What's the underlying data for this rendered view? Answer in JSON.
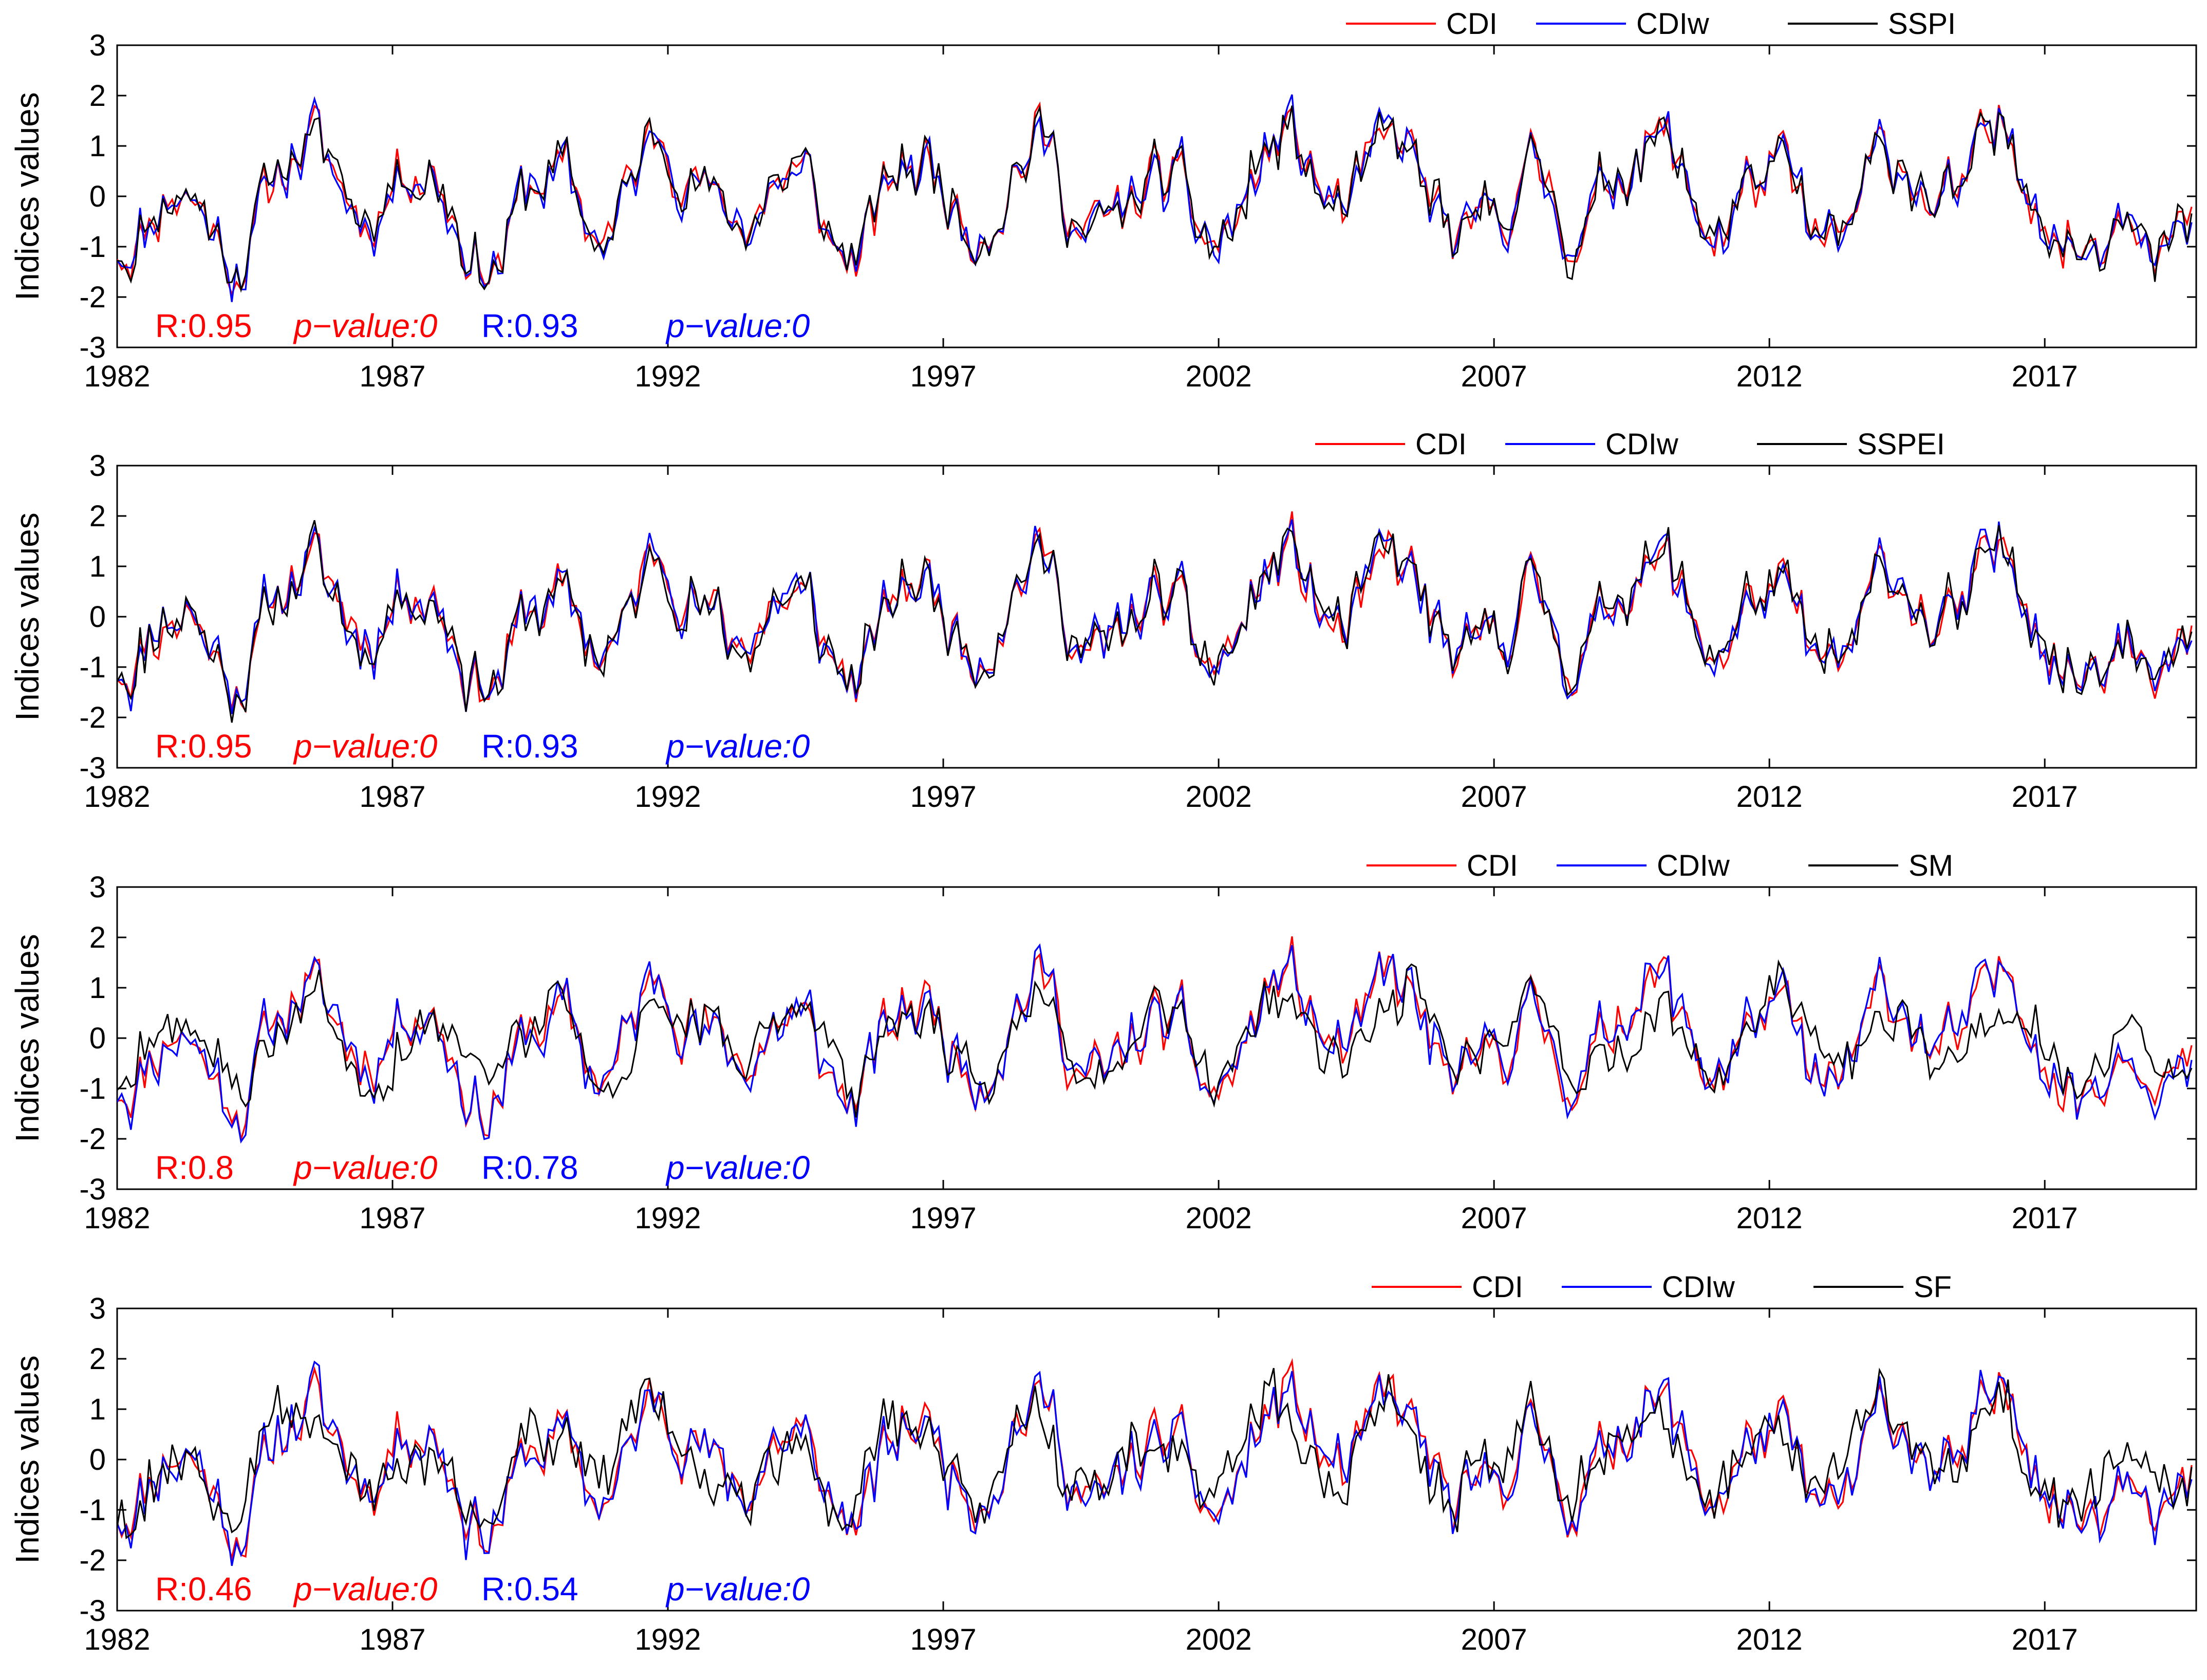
{
  "chart_data": [
    {
      "type": "line",
      "ylabel": "Indices values",
      "xlim": [
        1982,
        2019.75
      ],
      "ylim": [
        -3,
        3
      ],
      "xticks": [
        "1982",
        "1987",
        "1992",
        "1997",
        "2002",
        "2007",
        "2012",
        "2017"
      ],
      "yticks": [
        "3",
        "2",
        "1",
        "0",
        "-1",
        "-2",
        "-3"
      ],
      "legend": [
        "CDI",
        "CDIw",
        "SSPI"
      ],
      "legend_position": "top-right",
      "stats": [
        {
          "r_text": "R:0.95",
          "p_text": "p−value:0",
          "color": "#ff0000"
        },
        {
          "r_text": "R:0.93",
          "p_text": "p−value:0",
          "color": "#0000ff"
        }
      ],
      "series": [
        {
          "name": "CDI",
          "color": "#ff0000",
          "seed": 11,
          "noise": 0.25
        },
        {
          "name": "CDIw",
          "color": "#0000ff",
          "seed": 11,
          "noise": 0.32
        },
        {
          "name": "SSPI",
          "color": "#000000",
          "seed": 11,
          "noise": 0.35
        }
      ]
    },
    {
      "type": "line",
      "ylabel": "Indices values",
      "xlim": [
        1982,
        2019.75
      ],
      "ylim": [
        -3,
        3
      ],
      "xticks": [
        "1982",
        "1987",
        "1992",
        "1997",
        "2002",
        "2007",
        "2012",
        "2017"
      ],
      "yticks": [
        "3",
        "2",
        "1",
        "0",
        "-1",
        "-2",
        "-3"
      ],
      "legend": [
        "CDI",
        "CDIw",
        "SSPEI"
      ],
      "legend_position": "top-right",
      "stats": [
        {
          "r_text": "R:0.95",
          "p_text": "p−value:0",
          "color": "#ff0000"
        },
        {
          "r_text": "R:0.93",
          "p_text": "p−value:0",
          "color": "#0000ff"
        }
      ],
      "series": [
        {
          "name": "CDI",
          "color": "#ff0000",
          "seed": 11,
          "noise": 0.25
        },
        {
          "name": "CDIw",
          "color": "#0000ff",
          "seed": 11,
          "noise": 0.32
        },
        {
          "name": "SSPEI",
          "color": "#000000",
          "seed": 11,
          "noise": 0.38
        }
      ]
    },
    {
      "type": "line",
      "ylabel": "Indices values",
      "xlim": [
        1982,
        2019.75
      ],
      "ylim": [
        -3,
        3
      ],
      "xticks": [
        "1982",
        "1987",
        "1992",
        "1997",
        "2002",
        "2007",
        "2012",
        "2017"
      ],
      "yticks": [
        "3",
        "2",
        "1",
        "0",
        "-1",
        "-2",
        "-3"
      ],
      "legend": [
        "CDI",
        "CDIw",
        "SM"
      ],
      "legend_position": "top-right",
      "stats": [
        {
          "r_text": "R:0.8",
          "p_text": "p−value:0",
          "color": "#ff0000"
        },
        {
          "r_text": "R:0.78",
          "p_text": "p−value:0",
          "color": "#0000ff"
        }
      ],
      "series": [
        {
          "name": "CDI",
          "color": "#ff0000",
          "seed": 11,
          "noise": 0.25
        },
        {
          "name": "CDIw",
          "color": "#0000ff",
          "seed": 11,
          "noise": 0.32
        },
        {
          "name": "SM",
          "color": "#000000",
          "seed": 23,
          "noise": 0.75
        }
      ]
    },
    {
      "type": "line",
      "ylabel": "Indices values",
      "xlim": [
        1982,
        2019.75
      ],
      "ylim": [
        -3,
        3
      ],
      "xticks": [
        "1982",
        "1987",
        "1992",
        "1997",
        "2002",
        "2007",
        "2012",
        "2017"
      ],
      "yticks": [
        "3",
        "2",
        "1",
        "0",
        "-1",
        "-2",
        "-3"
      ],
      "legend": [
        "CDI",
        "CDIw",
        "SF"
      ],
      "legend_position": "top-right",
      "stats": [
        {
          "r_text": "R:0.46",
          "p_text": "p−value:0",
          "color": "#ff0000"
        },
        {
          "r_text": "R:0.54",
          "p_text": "p−value:0",
          "color": "#0000ff"
        }
      ],
      "series": [
        {
          "name": "CDI",
          "color": "#ff0000",
          "seed": 11,
          "noise": 0.25
        },
        {
          "name": "CDIw",
          "color": "#0000ff",
          "seed": 11,
          "noise": 0.32
        },
        {
          "name": "SF",
          "color": "#000000",
          "seed": 37,
          "noise": 1.1
        }
      ]
    }
  ]
}
